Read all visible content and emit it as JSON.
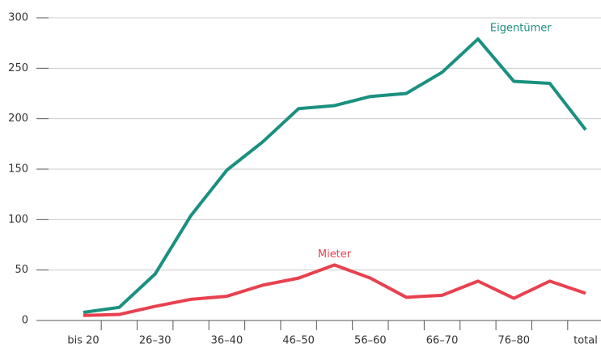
{
  "chart_data": {
    "type": "line",
    "categories": [
      "bis 20",
      null,
      "26–30",
      null,
      "36–40",
      null,
      "46–50",
      null,
      "56–60",
      null,
      "66–70",
      null,
      "76–80",
      null,
      "total"
    ],
    "series": [
      {
        "name": "Eigentümer",
        "color": "#1a9080",
        "values": [
          8,
          13,
          46,
          104,
          149,
          177,
          210,
          213,
          222,
          225,
          246,
          279,
          237,
          235,
          189
        ]
      },
      {
        "name": "Mieter",
        "color": "#e8414f",
        "values": [
          5,
          6,
          14,
          21,
          24,
          35,
          42,
          55,
          42,
          23,
          25,
          39,
          22,
          39,
          27
        ]
      }
    ],
    "ylim": [
      0,
      300
    ],
    "yticks": [
      0,
      50,
      100,
      150,
      200,
      250,
      300
    ],
    "grid": true
  }
}
